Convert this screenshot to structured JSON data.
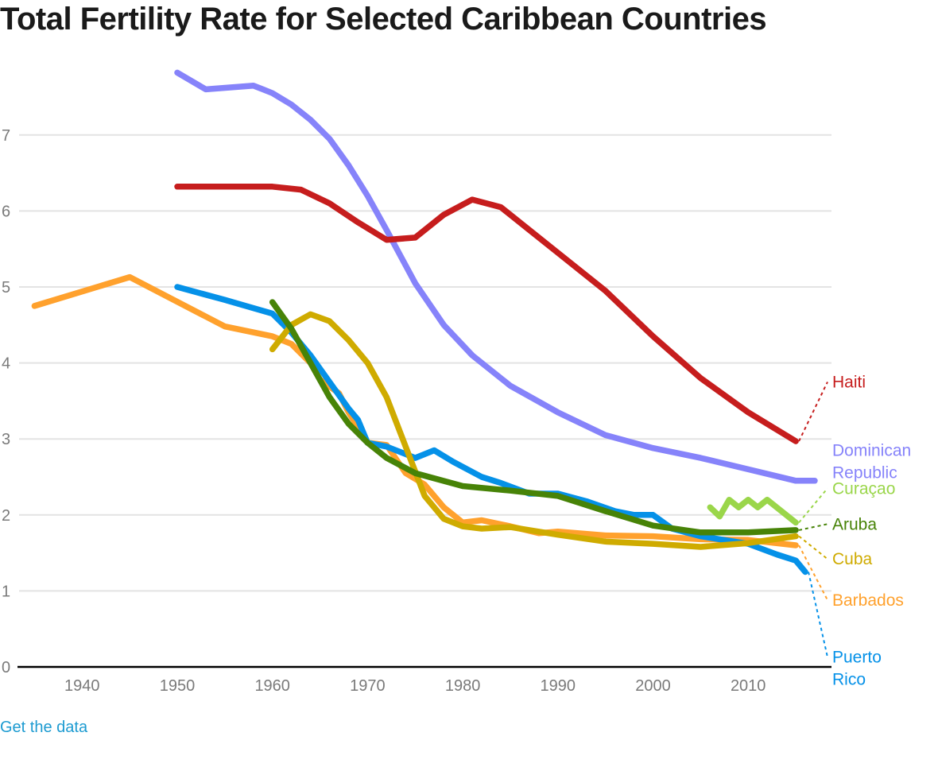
{
  "page": {
    "title": "Total Fertility Rate for Selected Caribbean Countries",
    "link_label": "Get the data"
  },
  "chart_data": {
    "type": "line",
    "title": "Total Fertility Rate for Selected Caribbean Countries",
    "xlabel": "",
    "ylabel": "",
    "xlim": [
      1933,
      2018
    ],
    "ylim": [
      0,
      7.9
    ],
    "x_ticks": [
      1940,
      1950,
      1960,
      1970,
      1980,
      1990,
      2000,
      2010
    ],
    "y_ticks": [
      0,
      1,
      2,
      3,
      4,
      5,
      6,
      7
    ],
    "grid": true,
    "legend": "direct-labels-right",
    "series": [
      {
        "name": "Haiti",
        "label_lines": [
          "Haiti"
        ],
        "color": "#c61d1d",
        "label_value": 3.75,
        "x": [
          1950,
          1955,
          1960,
          1963,
          1966,
          1969,
          1972,
          1975,
          1978,
          1981,
          1984,
          1987,
          1990,
          1995,
          2000,
          2005,
          2010,
          2015
        ],
        "y": [
          6.32,
          6.32,
          6.32,
          6.28,
          6.1,
          5.85,
          5.62,
          5.65,
          5.95,
          6.15,
          6.05,
          5.75,
          5.45,
          4.95,
          4.35,
          3.8,
          3.35,
          2.97
        ]
      },
      {
        "name": "Dominican Republic",
        "label_lines": [
          "Dominican",
          "Republic"
        ],
        "color": "#8683fa",
        "label_value": 2.85,
        "x": [
          1950,
          1953,
          1958,
          1959,
          1960,
          1962,
          1964,
          1966,
          1968,
          1970,
          1972,
          1975,
          1978,
          1981,
          1985,
          1990,
          1995,
          2000,
          2005,
          2010,
          2015,
          2017
        ],
        "y": [
          7.82,
          7.6,
          7.65,
          7.6,
          7.55,
          7.4,
          7.2,
          6.95,
          6.6,
          6.2,
          5.75,
          5.05,
          4.5,
          4.1,
          3.7,
          3.35,
          3.05,
          2.88,
          2.75,
          2.6,
          2.45,
          2.45
        ]
      },
      {
        "name": "Curaçao",
        "label_lines": [
          "Curaçao"
        ],
        "color": "#9ad64a",
        "label_value": 2.35,
        "x": [
          2006,
          2007,
          2008,
          2009,
          2010,
          2011,
          2012,
          2015
        ],
        "y": [
          2.1,
          1.98,
          2.2,
          2.1,
          2.2,
          2.1,
          2.2,
          1.9
        ]
      },
      {
        "name": "Aruba",
        "label_lines": [
          "Aruba"
        ],
        "color": "#478307",
        "label_value": 1.88,
        "x": [
          1960,
          1962,
          1964,
          1966,
          1968,
          1970,
          1972,
          1975,
          1980,
          1985,
          1990,
          1995,
          2000,
          2005,
          2010,
          2015
        ],
        "y": [
          4.8,
          4.45,
          4.0,
          3.55,
          3.2,
          2.95,
          2.75,
          2.55,
          2.38,
          2.32,
          2.25,
          2.05,
          1.86,
          1.77,
          1.77,
          1.8
        ]
      },
      {
        "name": "Cuba",
        "label_lines": [
          "Cuba"
        ],
        "color": "#cfab00",
        "label_value": 1.42,
        "x": [
          1960,
          1962,
          1964,
          1966,
          1968,
          1970,
          1972,
          1974,
          1976,
          1978,
          1980,
          1982,
          1985,
          1990,
          1995,
          2000,
          2005,
          2010,
          2015
        ],
        "y": [
          4.18,
          4.5,
          4.64,
          4.55,
          4.3,
          4.0,
          3.55,
          2.9,
          2.25,
          1.95,
          1.85,
          1.82,
          1.84,
          1.74,
          1.65,
          1.62,
          1.58,
          1.63,
          1.72
        ]
      },
      {
        "name": "Barbados",
        "label_lines": [
          "Barbados"
        ],
        "color": "#ffa12d",
        "label_value": 0.88,
        "x": [
          1935,
          1945,
          1955,
          1960,
          1962,
          1964,
          1965,
          1967,
          1968,
          1970,
          1972,
          1974,
          1976,
          1978,
          1980,
          1982,
          1985,
          1988,
          1990,
          1995,
          2000,
          2005,
          2010,
          2015
        ],
        "y": [
          4.75,
          5.13,
          4.48,
          4.35,
          4.25,
          4.0,
          3.78,
          3.6,
          3.35,
          2.95,
          2.92,
          2.55,
          2.4,
          2.1,
          1.9,
          1.93,
          1.85,
          1.76,
          1.78,
          1.73,
          1.72,
          1.68,
          1.67,
          1.6
        ]
      },
      {
        "name": "Puerto Rico",
        "label_lines": [
          "Puerto",
          "Rico"
        ],
        "color": "#0591e8",
        "label_value": 0.13,
        "x": [
          1950,
          1955,
          1960,
          1962,
          1964,
          1966,
          1968,
          1969,
          1970,
          1972,
          1974,
          1975,
          1977,
          1979,
          1982,
          1984,
          1987,
          1990,
          1993,
          1996,
          1998,
          2000,
          2002,
          2005,
          2010,
          2013,
          2015,
          2016
        ],
        "y": [
          5.0,
          4.83,
          4.65,
          4.4,
          4.1,
          3.75,
          3.4,
          3.25,
          2.95,
          2.9,
          2.8,
          2.75,
          2.85,
          2.7,
          2.5,
          2.42,
          2.28,
          2.28,
          2.18,
          2.05,
          2.0,
          2.0,
          1.82,
          1.72,
          1.62,
          1.48,
          1.4,
          1.25
        ]
      }
    ]
  }
}
